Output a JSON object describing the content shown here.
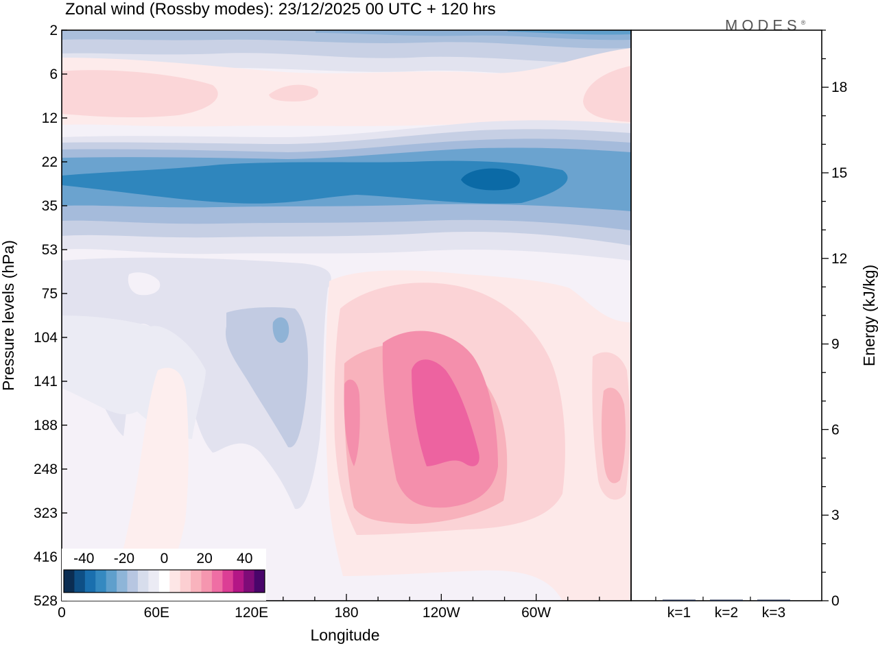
{
  "header": {
    "title": "Zonal wind (Rossby modes):  23/12/2025  00 UTC  + 120 hrs",
    "brand": "MODES",
    "brand_mark": "®"
  },
  "chart_data": [
    {
      "type": "heatmap",
      "title": "Zonal wind (Rossby modes):  23/12/2025  00 UTC  + 120 hrs",
      "xlabel": "Longitude",
      "ylabel": "Pressure levels (hPa)",
      "x_ticks": [
        "0",
        "60E",
        "120E",
        "180",
        "120W",
        "60W"
      ],
      "x_tick_values": [
        0,
        60,
        120,
        180,
        240,
        300
      ],
      "xlim": [
        0,
        360
      ],
      "y_ticks": [
        "2",
        "6",
        "12",
        "22",
        "35",
        "53",
        "75",
        "104",
        "141",
        "188",
        "248",
        "323",
        "416",
        "528"
      ],
      "y_scale": "level index (top to bottom)",
      "colorbar": {
        "tick_labels": [
          "-40",
          "-20",
          "0",
          "20",
          "40"
        ],
        "range": [
          -50,
          50
        ],
        "placement": "bottom-left",
        "colors": [
          "#0b2d52",
          "#0e4f85",
          "#1a6fae",
          "#3589c0",
          "#5f9fcc",
          "#8eb5d8",
          "#b7c6e1",
          "#d7ddec",
          "#ebebf4",
          "#ffffff",
          "#fde6e6",
          "#fccfd2",
          "#f9b3bd",
          "#f596af",
          "#ef6ea4",
          "#dc3e95",
          "#b41686",
          "#7f0b78",
          "#49056a"
        ]
      },
      "features": [
        {
          "name": "upper westerly band",
          "level_range": [
            "2",
            "6"
          ],
          "value": -12
        },
        {
          "name": "weak positive band",
          "level_range": [
            "6",
            "12"
          ],
          "value": 4
        },
        {
          "name": "strong negative jet",
          "level_range": [
            "22",
            "53"
          ],
          "value": -30,
          "minimum_near": "80W at 22-35 hPa"
        },
        {
          "name": "negative region over 60E-150E",
          "level_range": [
            "75",
            "323"
          ],
          "value": -10
        },
        {
          "name": "positive region 180-60W",
          "level_range": [
            "75",
            "416"
          ],
          "value": 20,
          "maximum_near": "115W at 141-248 hPa"
        }
      ]
    },
    {
      "type": "bar",
      "categories": [
        "k=1",
        "k=2",
        "k=3"
      ],
      "values": [
        0.02,
        0.03,
        0.01
      ],
      "ylabel": "Energy (kJ/kg)",
      "y_ticks": [
        "0",
        "3",
        "6",
        "9",
        "12",
        "15",
        "18"
      ],
      "ylim": [
        0,
        20
      ]
    }
  ]
}
